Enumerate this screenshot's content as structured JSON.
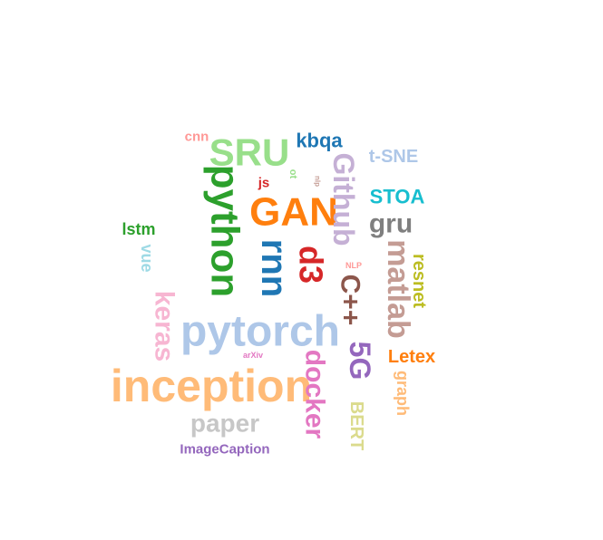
{
  "words": [
    {
      "text": "pytorch",
      "color": "#aec7e8"
    },
    {
      "text": "inception",
      "color": "#ffbb78"
    },
    {
      "text": "python",
      "color": "#2ca02c"
    },
    {
      "text": "GAN",
      "color": "#ff7f0e"
    },
    {
      "text": "rnn",
      "color": "#1f77b4"
    },
    {
      "text": "SRU",
      "color": "#98df8a"
    },
    {
      "text": "Github",
      "color": "#c5b0d5"
    },
    {
      "text": "matlab",
      "color": "#c49c94"
    },
    {
      "text": "C++",
      "color": "#8c564b"
    },
    {
      "text": "5G",
      "color": "#9467bd"
    },
    {
      "text": "d3",
      "color": "#d62728"
    },
    {
      "text": "docker",
      "color": "#e377c2"
    },
    {
      "text": "keras",
      "color": "#f7b6d2"
    },
    {
      "text": "paper",
      "color": "#c7c7c7"
    },
    {
      "text": "gru",
      "color": "#7f7f7f"
    },
    {
      "text": "kbqa",
      "color": "#1f77b4"
    },
    {
      "text": "STOA",
      "color": "#17becf"
    },
    {
      "text": "t-SNE",
      "color": "#aec7e8"
    },
    {
      "text": "resnet",
      "color": "#bcbd22"
    },
    {
      "text": "BERT",
      "color": "#dbdb8d"
    },
    {
      "text": "Letex",
      "color": "#ff7f0e"
    },
    {
      "text": "graph",
      "color": "#ffbb78"
    },
    {
      "text": "lstm",
      "color": "#2ca02c"
    },
    {
      "text": "vue",
      "color": "#9edae5"
    },
    {
      "text": "ImageCaption",
      "color": "#9467bd"
    },
    {
      "text": "cnn",
      "color": "#ff9896"
    },
    {
      "text": "js",
      "color": "#d62728"
    },
    {
      "text": "ot",
      "color": "#98df8a"
    },
    {
      "text": "nlp",
      "color": "#c49c94"
    },
    {
      "text": "NLP",
      "color": "#ff9896"
    },
    {
      "text": "arXiv",
      "color": "#e377c2"
    }
  ]
}
